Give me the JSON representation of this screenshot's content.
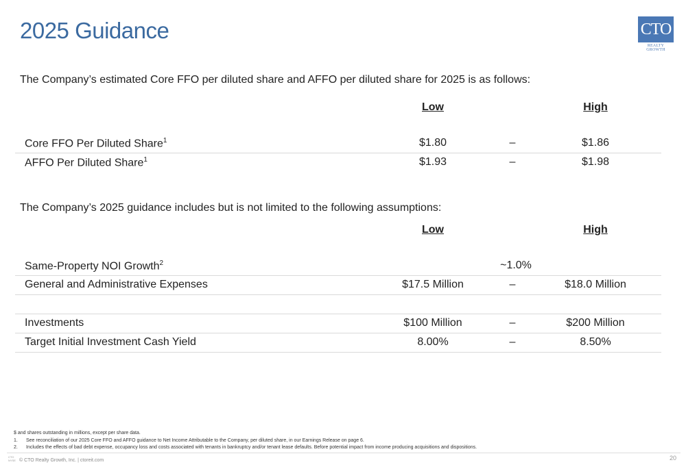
{
  "title": "2025 Guidance",
  "logo": {
    "main": "CTO",
    "sub": "REALTY GROWTH"
  },
  "section1": {
    "intro": "The Company’s estimated Core FFO per diluted share and AFFO per diluted share for 2025 is as follows:",
    "header_low": "Low",
    "header_high": "High",
    "rows": [
      {
        "label": "Core FFO Per Diluted Share",
        "sup": "1",
        "low": "$1.80",
        "dash": "–",
        "high": "$1.86"
      },
      {
        "label": "AFFO Per Diluted Share",
        "sup": "1",
        "low": "$1.93",
        "dash": "–",
        "high": "$1.98"
      }
    ]
  },
  "section2": {
    "intro": "The Company’s 2025 guidance includes but is not limited to the following assumptions:",
    "header_low": "Low",
    "header_high": "High",
    "rows": [
      {
        "label": "Same-Property NOI Growth",
        "sup": "2",
        "mid": "~1.0%"
      },
      {
        "label": "General and Administrative Expenses",
        "low": "$17.5 Million",
        "dash": "–",
        "high": "$18.0 Million"
      },
      {
        "label": "Investments",
        "low": "$100 Million",
        "dash": "–",
        "high": "$200 Million"
      },
      {
        "label": "Target Initial Investment Cash Yield",
        "low": "8.00%",
        "dash": "–",
        "high": "8.50%"
      }
    ]
  },
  "footnotes": {
    "note0": "$ and shares outstanding in millions, except per share data.",
    "note1_num": "1.",
    "note1": "See reconciliation of our 2025 Core FFO and AFFO guidance to Net Income Attributable to the Company, per diluted share, in our Earnings Release on page 6.",
    "note2_num": "2.",
    "note2": "Includes the effects of bad debt expense, occupancy loss and costs associated with tenants in bankruptcy and/or tenant lease defaults. Before potential impact from income producing acquisitions and dispositions."
  },
  "footer": {
    "logo_text": "CTO NYSE",
    "copyright": "© CTO Realty Growth, Inc. | ctoreit.com",
    "page_number": "20"
  }
}
